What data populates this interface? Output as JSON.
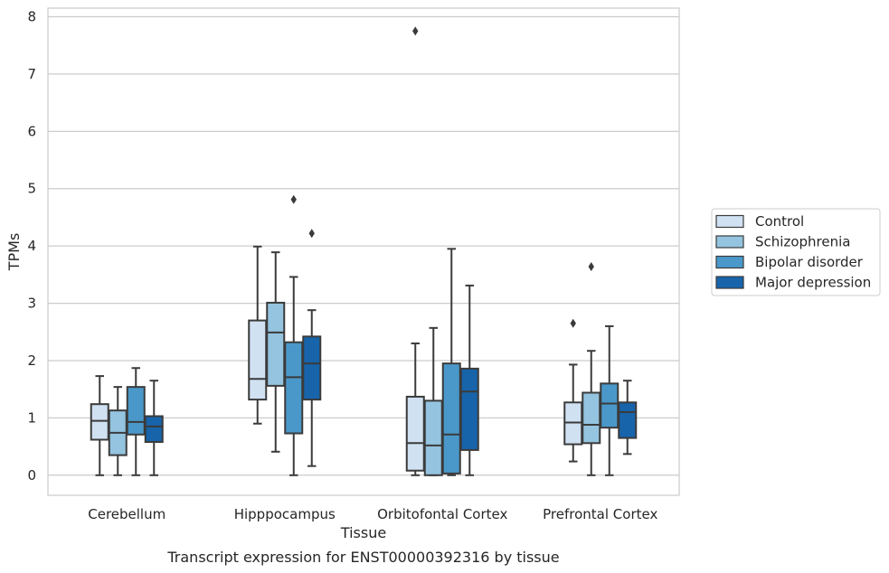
{
  "chart_data": {
    "type": "box",
    "title": "",
    "caption": "Transcript expression for ENST00000392316 by tissue",
    "xlabel": "Tissue",
    "ylabel": "TPMs",
    "ylim": [
      -0.35,
      8.15
    ],
    "yticks": [
      0,
      1,
      2,
      3,
      4,
      5,
      6,
      7,
      8
    ],
    "grid": "horizontal",
    "legend_position": "right",
    "categories": [
      "Cerebellum",
      "Hipppocampus",
      "Orbitofontal Cortex",
      "Prefrontal Cortex"
    ],
    "series": [
      {
        "name": "Control",
        "color": "#d0e1f2",
        "boxes": [
          {
            "whislo": 0.0,
            "q1": 0.62,
            "med": 0.95,
            "q3": 1.24,
            "whishi": 1.73,
            "fliers": []
          },
          {
            "whislo": 0.9,
            "q1": 1.32,
            "med": 1.68,
            "q3": 2.7,
            "whishi": 3.99,
            "fliers": []
          },
          {
            "whislo": 0.0,
            "q1": 0.08,
            "med": 0.56,
            "q3": 1.37,
            "whishi": 2.3,
            "fliers": [
              7.75
            ]
          },
          {
            "whislo": 0.24,
            "q1": 0.54,
            "med": 0.92,
            "q3": 1.27,
            "whishi": 1.93,
            "fliers": [
              2.65
            ]
          }
        ]
      },
      {
        "name": "Schizophrenia",
        "color": "#94c4df",
        "boxes": [
          {
            "whislo": 0.0,
            "q1": 0.35,
            "med": 0.74,
            "q3": 1.13,
            "whishi": 1.54,
            "fliers": []
          },
          {
            "whislo": 0.41,
            "q1": 1.56,
            "med": 2.49,
            "q3": 3.01,
            "whishi": 3.89,
            "fliers": []
          },
          {
            "whislo": 0.0,
            "q1": 0.0,
            "med": 0.52,
            "q3": 1.3,
            "whishi": 2.57,
            "fliers": []
          },
          {
            "whislo": 0.0,
            "q1": 0.56,
            "med": 0.88,
            "q3": 1.44,
            "whishi": 2.17,
            "fliers": [
              3.64
            ]
          }
        ]
      },
      {
        "name": "Bipolar disorder",
        "color": "#4a98c9",
        "boxes": [
          {
            "whislo": 0.0,
            "q1": 0.71,
            "med": 0.93,
            "q3": 1.54,
            "whishi": 1.87,
            "fliers": []
          },
          {
            "whislo": 0.0,
            "q1": 0.73,
            "med": 1.71,
            "q3": 2.32,
            "whishi": 3.46,
            "fliers": [
              4.81
            ]
          },
          {
            "whislo": 0.0,
            "q1": 0.03,
            "med": 0.71,
            "q3": 1.95,
            "whishi": 3.95,
            "fliers": []
          },
          {
            "whislo": 0.0,
            "q1": 0.83,
            "med": 1.25,
            "q3": 1.6,
            "whishi": 2.6,
            "fliers": []
          }
        ]
      },
      {
        "name": "Major depression",
        "color": "#1764ab",
        "boxes": [
          {
            "whislo": 0.0,
            "q1": 0.58,
            "med": 0.85,
            "q3": 1.03,
            "whishi": 1.65,
            "fliers": []
          },
          {
            "whislo": 0.16,
            "q1": 1.32,
            "med": 1.95,
            "q3": 2.42,
            "whishi": 2.88,
            "fliers": [
              4.22
            ]
          },
          {
            "whislo": 0.0,
            "q1": 0.44,
            "med": 1.46,
            "q3": 1.86,
            "whishi": 3.31,
            "fliers": []
          },
          {
            "whislo": 0.37,
            "q1": 0.65,
            "med": 1.1,
            "q3": 1.27,
            "whishi": 1.65,
            "fliers": []
          }
        ]
      }
    ]
  }
}
